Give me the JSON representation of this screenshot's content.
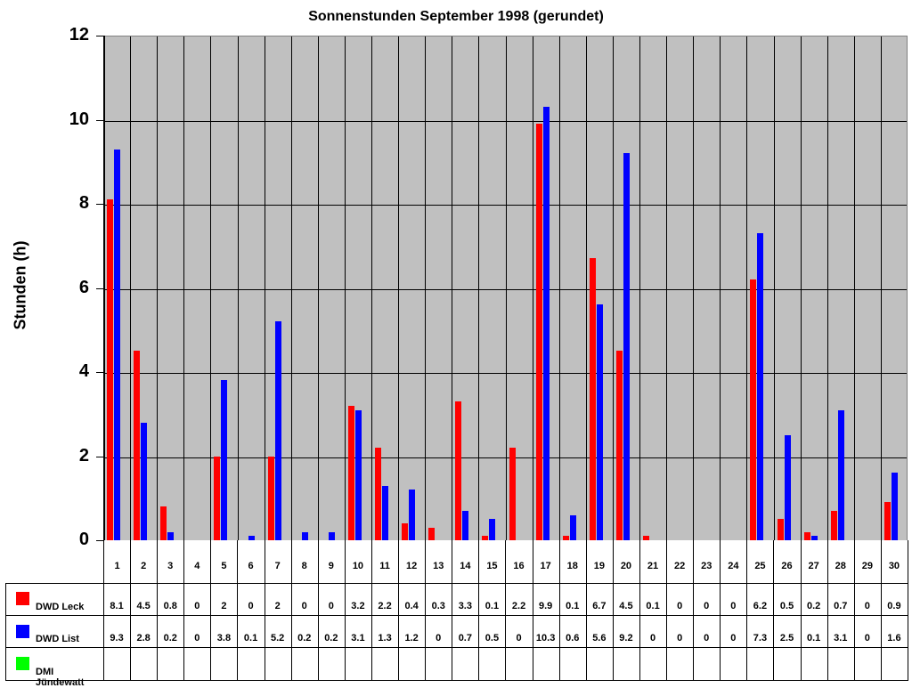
{
  "chart_data": {
    "type": "bar",
    "title": "Sonnenstunden September 1998 (gerundet)",
    "xlabel": "",
    "ylabel": "Stunden (h)",
    "ylim": [
      0,
      12
    ],
    "yticks": [
      0,
      2,
      4,
      6,
      8,
      10,
      12
    ],
    "grid": {
      "vertical": true,
      "horizontal": true
    },
    "legend_position": "data-table-left",
    "categories": [
      "1",
      "2",
      "3",
      "4",
      "5",
      "6",
      "7",
      "8",
      "9",
      "10",
      "11",
      "12",
      "13",
      "14",
      "15",
      "16",
      "17",
      "18",
      "19",
      "20",
      "21",
      "22",
      "23",
      "24",
      "25",
      "26",
      "27",
      "28",
      "29",
      "30"
    ],
    "series": [
      {
        "name": "DWD Leck",
        "color": "#ff0000",
        "values": [
          8.1,
          4.5,
          0.8,
          0,
          2,
          0,
          2,
          0,
          0,
          3.2,
          2.2,
          0.4,
          0.3,
          3.3,
          0.1,
          2.2,
          9.9,
          0.1,
          6.7,
          4.5,
          0.1,
          0,
          0,
          0,
          6.2,
          0.5,
          0.2,
          0.7,
          0,
          0.9
        ]
      },
      {
        "name": "DWD List",
        "color": "#0000ff",
        "values": [
          9.3,
          2.8,
          0.2,
          0,
          3.8,
          0.1,
          5.2,
          0.2,
          0.2,
          3.1,
          1.3,
          1.2,
          0,
          0.7,
          0.5,
          0,
          10.3,
          0.6,
          5.6,
          9.2,
          0,
          0,
          0,
          0,
          7.3,
          2.5,
          0.1,
          3.1,
          0,
          1.6
        ]
      },
      {
        "name": "DMI Jündewatt",
        "color": "#00ff00",
        "values": [
          null,
          null,
          null,
          null,
          null,
          null,
          null,
          null,
          null,
          null,
          null,
          null,
          null,
          null,
          null,
          null,
          null,
          null,
          null,
          null,
          null,
          null,
          null,
          null,
          null,
          null,
          null,
          null,
          null,
          null
        ]
      }
    ]
  },
  "colors": {
    "plot_bg": "#c0c0c0",
    "leck": "#ff0000",
    "list": "#0000ff",
    "juendewatt": "#00ff00"
  }
}
